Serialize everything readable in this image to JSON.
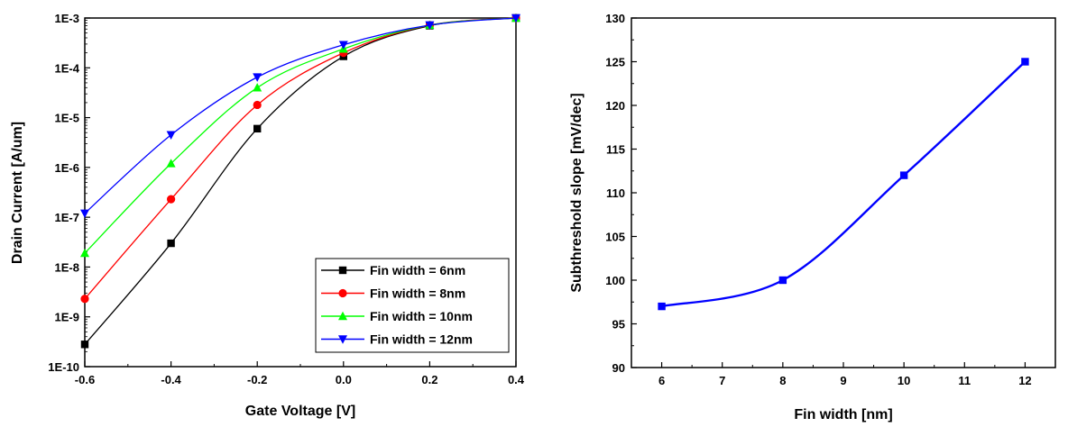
{
  "chart_data": [
    {
      "type": "line",
      "xlabel": "Gate Voltage [V]",
      "ylabel": "Drain Current [A/um]",
      "yscale": "log",
      "xlim": [
        -0.6,
        0.4
      ],
      "ylim": [
        1e-10,
        0.001
      ],
      "xticks": [
        -0.6,
        -0.4,
        -0.2,
        0.0,
        0.2,
        0.4
      ],
      "xtick_labels": [
        "-0.6",
        "-0.4",
        "-0.2",
        "0.0",
        "0.2",
        "0.4"
      ],
      "yticks": [
        1e-10,
        1e-09,
        1e-08,
        1e-07,
        1e-06,
        1e-05,
        0.0001,
        0.001
      ],
      "ytick_labels": [
        "1E-10",
        "1E-9",
        "1E-8",
        "1E-7",
        "1E-6",
        "1E-5",
        "1E-4",
        "1E-3"
      ],
      "grid": false,
      "legend_position": "bottom-right",
      "x": [
        -0.6,
        -0.4,
        -0.2,
        0.0,
        0.2,
        0.4
      ],
      "series": [
        {
          "name": "Fin width = 6nm",
          "color": "#000000",
          "marker": "square",
          "values": [
            2.8e-10,
            3e-08,
            6e-06,
            0.00017,
            0.0007,
            0.001
          ]
        },
        {
          "name": "Fin width = 8nm",
          "color": "#ff0000",
          "marker": "circle",
          "values": [
            2.3e-09,
            2.3e-07,
            1.8e-05,
            0.0002,
            0.00072,
            0.001
          ]
        },
        {
          "name": "Fin width = 10nm",
          "color": "#00ff00",
          "marker": "triangle-up",
          "values": [
            1.9e-08,
            1.2e-06,
            4e-05,
            0.00024,
            0.00072,
            0.001
          ]
        },
        {
          "name": "Fin width = 12nm",
          "color": "#0000ff",
          "marker": "triangle-down",
          "values": [
            1.2e-07,
            4.5e-06,
            6.5e-05,
            0.00029,
            0.00072,
            0.001
          ]
        }
      ]
    },
    {
      "type": "line",
      "xlabel": "Fin width [nm]",
      "ylabel": "Subthreshold slope [mV/dec]",
      "xlim": [
        5.5,
        12.5
      ],
      "ylim": [
        90,
        130
      ],
      "xticks": [
        6,
        7,
        8,
        9,
        10,
        11,
        12
      ],
      "xtick_labels": [
        "6",
        "7",
        "8",
        "9",
        "10",
        "11",
        "12"
      ],
      "yticks": [
        90,
        95,
        100,
        105,
        110,
        115,
        120,
        125,
        130
      ],
      "ytick_labels": [
        "90",
        "95",
        "100",
        "105",
        "110",
        "115",
        "120",
        "125",
        "130"
      ],
      "grid": false,
      "x": [
        6,
        8,
        10,
        12
      ],
      "series": [
        {
          "color": "#0000ff",
          "marker": "square",
          "values": [
            97,
            100,
            112,
            125
          ]
        }
      ]
    }
  ]
}
